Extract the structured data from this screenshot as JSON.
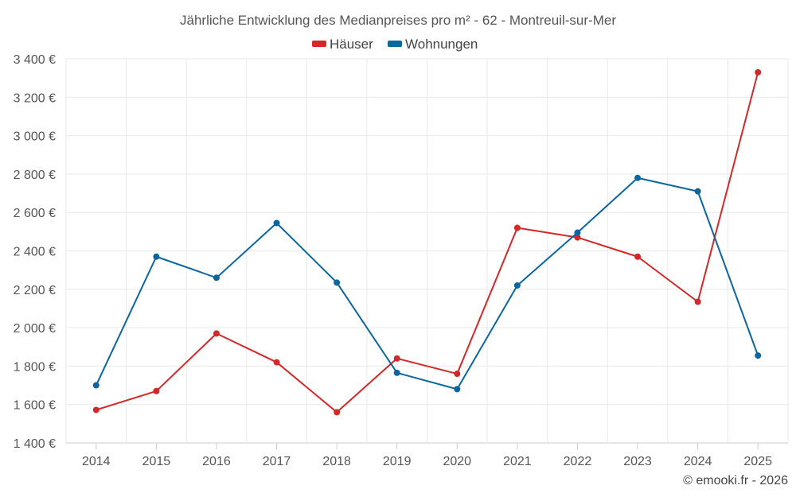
{
  "chart_data": {
    "type": "line",
    "title": "Jährliche Entwicklung des Medianpreises pro m² - 62 - Montreuil-sur-Mer",
    "categories": [
      "2014",
      "2015",
      "2016",
      "2017",
      "2018",
      "2019",
      "2020",
      "2021",
      "2022",
      "2023",
      "2024",
      "2025"
    ],
    "series": [
      {
        "name": "Häuser",
        "color": "#d62728",
        "values": [
          1572,
          1670,
          1970,
          1820,
          1560,
          1840,
          1760,
          2520,
          2470,
          2370,
          2135,
          3330
        ]
      },
      {
        "name": "Wohnungen",
        "color": "#0b66a0",
        "values": [
          1700,
          2370,
          2260,
          2545,
          2235,
          1765,
          1680,
          2220,
          2495,
          2780,
          2710,
          1855
        ]
      }
    ],
    "ylim": [
      1400,
      3400
    ],
    "yticks": [
      1400,
      1600,
      1800,
      2000,
      2200,
      2400,
      2600,
      2800,
      3000,
      3200,
      3400
    ],
    "ytick_labels": [
      "1 400 €",
      "1 600 €",
      "1 800 €",
      "2 000 €",
      "2 200 €",
      "2 400 €",
      "2 600 €",
      "2 800 €",
      "3 000 €",
      "3 200 €",
      "3 400 €"
    ],
    "legend_position": "top-center",
    "grid": true
  },
  "credit": "© emooki.fr - 2026"
}
